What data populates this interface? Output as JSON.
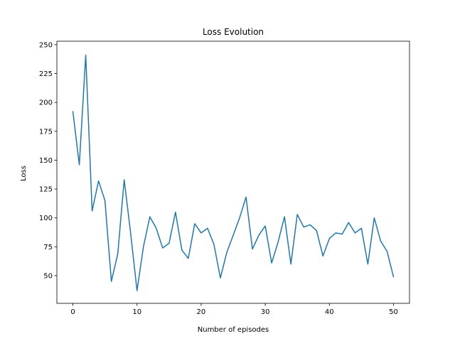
{
  "chart_data": {
    "type": "line",
    "title": "Loss Evolution",
    "xlabel": "Number of episodes",
    "ylabel": "Loss",
    "xlim": [
      -2.5,
      52.5
    ],
    "ylim": [
      26,
      253
    ],
    "xticks": [
      0,
      10,
      20,
      30,
      40,
      50
    ],
    "yticks": [
      50,
      75,
      100,
      125,
      150,
      175,
      200,
      225,
      250
    ],
    "grid": false,
    "series": [
      {
        "color": "#1f77b4",
        "x": [
          0,
          1,
          2,
          3,
          4,
          5,
          6,
          7,
          8,
          9,
          10,
          11,
          12,
          13,
          14,
          15,
          16,
          17,
          18,
          19,
          20,
          21,
          22,
          23,
          24,
          25,
          26,
          27,
          28,
          29,
          30,
          31,
          32,
          33,
          34,
          35,
          36,
          37,
          38,
          39,
          40,
          41,
          42,
          43,
          44,
          45,
          46,
          47,
          48,
          49,
          50
        ],
        "y": [
          192,
          146,
          241,
          106,
          132,
          115,
          45,
          69,
          133,
          87,
          37,
          75,
          101,
          91,
          74,
          78,
          105,
          72,
          65,
          95,
          87,
          91,
          77,
          48,
          70,
          85,
          100,
          118,
          73,
          85,
          93,
          61,
          79,
          101,
          60,
          103,
          92,
          94,
          89,
          67,
          82,
          87,
          86,
          96,
          87,
          91,
          60,
          100,
          80,
          71,
          49
        ]
      }
    ]
  }
}
